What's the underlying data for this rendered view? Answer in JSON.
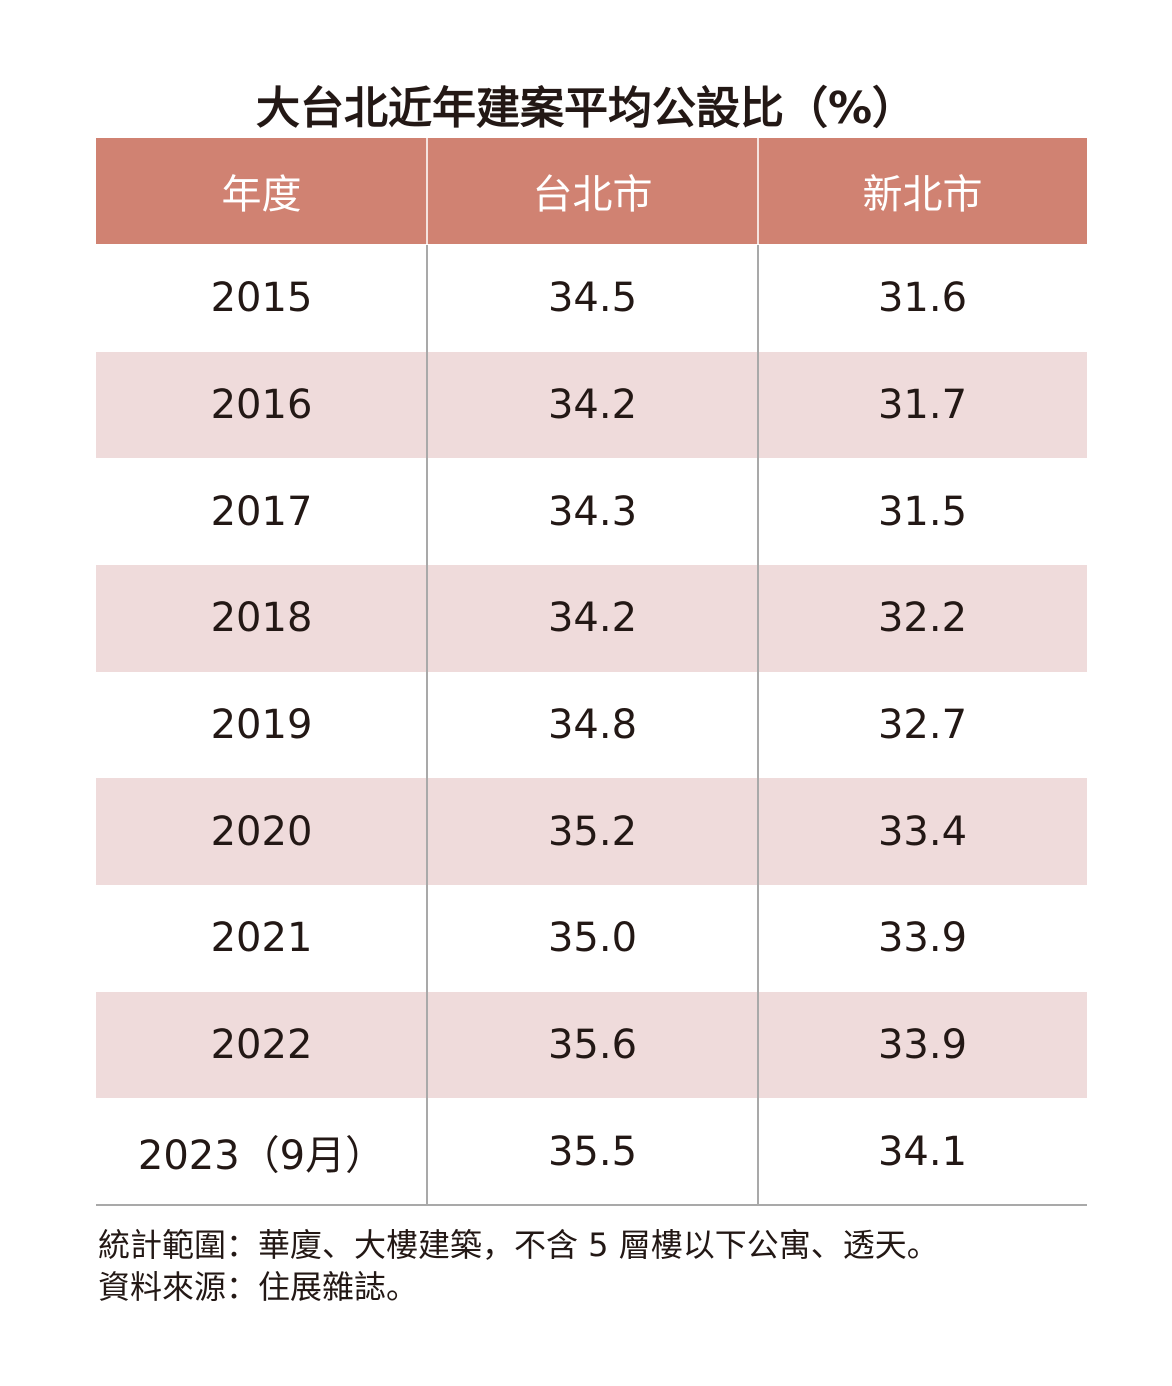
{
  "title": "大台北近年建案平均公設比（%）",
  "table": {
    "header": [
      "年度",
      "台北市",
      "新北市"
    ],
    "rows": [
      [
        "2015",
        "34.5",
        "31.6"
      ],
      [
        "2016",
        "34.2",
        "31.7"
      ],
      [
        "2017",
        "34.3",
        "31.5"
      ],
      [
        "2018",
        "34.2",
        "32.2"
      ],
      [
        "2019",
        "34.8",
        "32.7"
      ],
      [
        "2020",
        "35.2",
        "33.4"
      ],
      [
        "2021",
        "35.0",
        "33.9"
      ],
      [
        "2022",
        "35.6",
        "33.9"
      ],
      [
        "2023（9月）",
        "35.5",
        "34.1"
      ]
    ]
  },
  "notes": [
    "統計範圍：華廈、大樓建築，不含 5 層樓以下公寓、透天。",
    "資料來源：住展雜誌。"
  ]
}
